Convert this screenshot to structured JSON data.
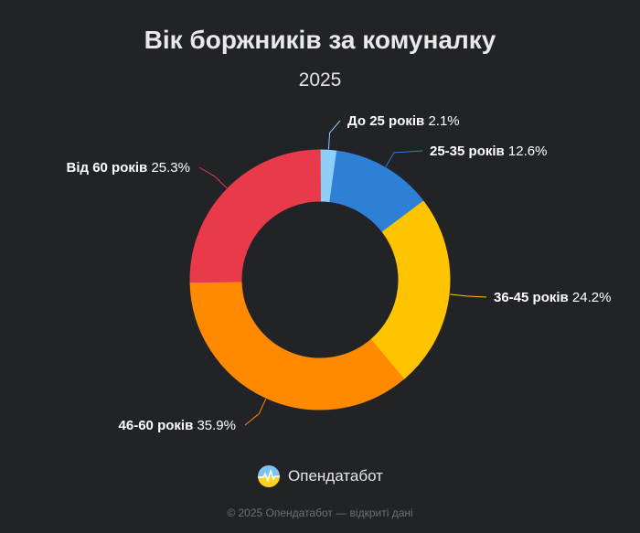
{
  "chart_data": {
    "type": "pie",
    "style": "donut",
    "title": "Вік боржників за комуналку",
    "subtitle": "2025",
    "categories": [
      "До 25 років",
      "25-35 років",
      "36-45 років",
      "46-60 років",
      "Від 60 років"
    ],
    "values": [
      2.1,
      12.6,
      24.2,
      35.9,
      25.3
    ],
    "value_suffix": "%",
    "colors": [
      "#8ecff7",
      "#2e7fd6",
      "#ffc400",
      "#ff8a00",
      "#e83a4a"
    ],
    "legend": "none"
  },
  "brand": {
    "name": "Опендатабот"
  },
  "footer": {
    "text": "© 2025 Опендатабот — відкриті дані"
  }
}
